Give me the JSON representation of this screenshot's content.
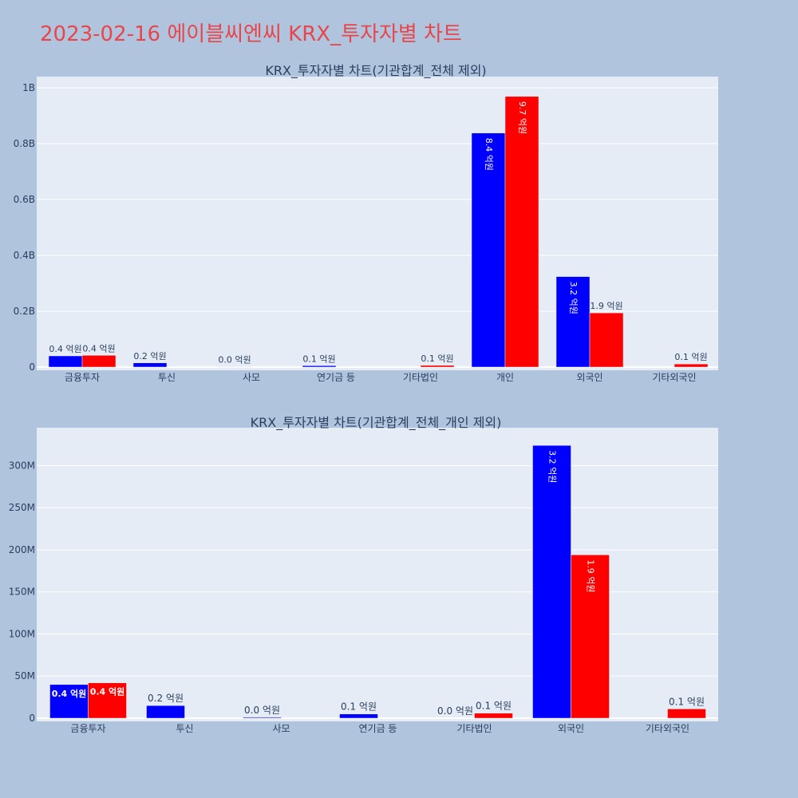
{
  "page_title": "2023-02-16 에이블씨엔씨 KRX_투자자별 차트",
  "colors": {
    "buy": "#0000ff",
    "sell": "#ff0000",
    "title": "#e8464b",
    "panel": "#e5ecf6",
    "page": "#b0c4de"
  },
  "chart_data": [
    {
      "type": "bar",
      "title": "KRX_투자자별 차트(기관합계_전체 제외)",
      "categories": [
        "금융투자",
        "투신",
        "사모",
        "연기금 등",
        "기타법인",
        "개인",
        "외국인",
        "기타외국인"
      ],
      "series": [
        {
          "values": [
            40000000,
            15000000,
            1000000,
            5000000,
            0,
            838000000,
            324000000,
            0
          ],
          "labels": [
            "0.4 억원",
            "0.2 억원",
            "0.0 억원",
            "0.1 억원",
            "",
            "8.4 억원",
            "3.2 억원",
            ""
          ]
        },
        {
          "values": [
            42000000,
            0,
            0,
            0,
            6000000,
            969000000,
            194000000,
            11000000
          ],
          "labels": [
            "0.4 억원",
            "",
            "",
            "",
            "0.1 억원",
            "9.7 억원",
            "1.9 억원",
            "0.1 억원"
          ]
        }
      ],
      "ylim": [
        0,
        1040000000
      ],
      "yticks": [
        0,
        200000000,
        400000000,
        600000000,
        800000000,
        1000000000
      ],
      "yticklabels": [
        "0",
        "0.2B",
        "0.4B",
        "0.6B",
        "0.8B",
        "1B"
      ],
      "grid": true
    },
    {
      "type": "bar",
      "title": "KRX_투자자별 차트(기관합계_전체_개인 제외)",
      "categories": [
        "금융투자",
        "투신",
        "사모",
        "연기금 등",
        "기타법인",
        "외국인",
        "기타외국인"
      ],
      "series": [
        {
          "values": [
            40000000,
            15000000,
            1000000,
            5000000,
            0,
            324000000,
            0
          ],
          "labels": [
            "0.4 억원",
            "0.2 억원",
            "0.0 억원",
            "0.1 억원",
            "0.0 억원",
            "3.2 억원",
            ""
          ]
        },
        {
          "values": [
            42000000,
            0,
            0,
            0,
            6000000,
            194000000,
            11000000
          ],
          "labels": [
            "0.4 억원",
            "",
            "",
            "",
            "0.1 억원",
            "1.9 억원",
            "0.1 억원"
          ]
        }
      ],
      "ylim": [
        0,
        345000000
      ],
      "yticks": [
        0,
        50000000,
        100000000,
        150000000,
        200000000,
        250000000,
        300000000
      ],
      "yticklabels": [
        "0",
        "50M",
        "100M",
        "150M",
        "200M",
        "250M",
        "300M"
      ],
      "grid": true
    }
  ]
}
